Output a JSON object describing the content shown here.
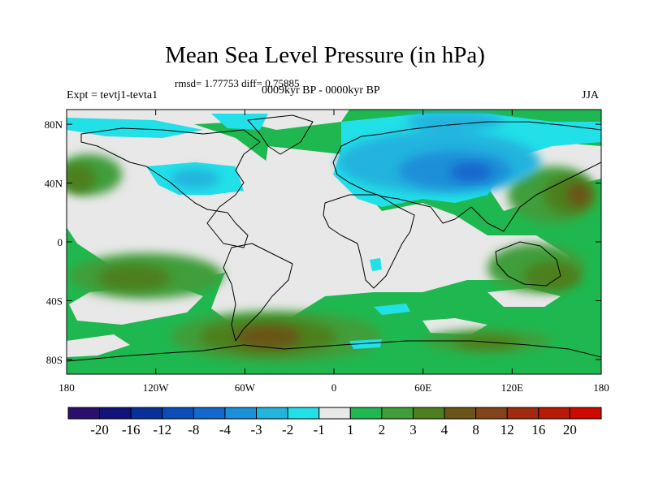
{
  "figure": {
    "title": "Mean Sea Level Pressure (in hPa)",
    "stats_line": "rmsd= 1.77753 diff= 0.75885",
    "left_label": "Expt = tevtj1-tevta1",
    "center_label": "0009kyr BP - 0000kyr BP",
    "right_label": "JJA"
  },
  "axes": {
    "lat_ticks": [
      {
        "value": 80,
        "label": "80N"
      },
      {
        "value": 40,
        "label": "40N"
      },
      {
        "value": 0,
        "label": "0"
      },
      {
        "value": -40,
        "label": "40S"
      },
      {
        "value": -80,
        "label": "80S"
      }
    ],
    "lon_ticks": [
      {
        "value": -180,
        "label": "180"
      },
      {
        "value": -120,
        "label": "120W"
      },
      {
        "value": -60,
        "label": "60W"
      },
      {
        "value": 0,
        "label": "0"
      },
      {
        "value": 60,
        "label": "60E"
      },
      {
        "value": 120,
        "label": "120E"
      },
      {
        "value": 180,
        "label": "180"
      }
    ],
    "lat_range": [
      -90,
      90
    ],
    "lon_range": [
      -180,
      180
    ]
  },
  "colorbar": {
    "colors": [
      "#2a0f6e",
      "#12127a",
      "#08309a",
      "#0a4fb8",
      "#1468cc",
      "#1b8fd8",
      "#23b4de",
      "#22e0e8",
      "#e8e8e8",
      "#1fb850",
      "#3f9e3a",
      "#4d7f1f",
      "#6b5418",
      "#834419",
      "#9f2a0e",
      "#b81a06",
      "#cc0a00"
    ],
    "labels": [
      "-20",
      "-16",
      "-12",
      "-8",
      "-4",
      "-3",
      "-2",
      "-1",
      "1",
      "2",
      "3",
      "4",
      "8",
      "12",
      "16",
      "20"
    ]
  },
  "map_colors": {
    "neutral": "#e8e8e8",
    "pos2": "#1fb850",
    "pos3": "#3f9e3a",
    "pos4": "#4d7f1f",
    "pos8": "#6b5418",
    "pos12": "#834419",
    "neg1": "#22e0e8",
    "neg2": "#23b4de",
    "neg3": "#1b8fd8",
    "neg4": "#1468cc"
  }
}
